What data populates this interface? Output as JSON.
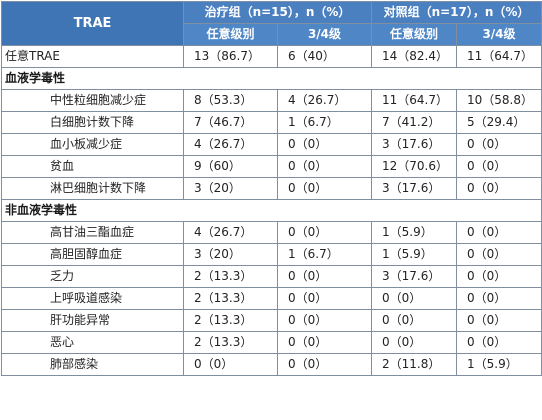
{
  "header": {
    "trae": "TRAE",
    "treatment": "治疗组（n=15），n（%）",
    "control": "对照组（n=17），n（%）",
    "any_grade": "任意级别",
    "grade34": "3/4级"
  },
  "overall": {
    "name": "任意TRAE",
    "t_any": "13（86.7）",
    "t_34": "6（40）",
    "c_any": "14（82.4）",
    "c_34": "11（64.7）"
  },
  "hematologic": {
    "title": "血液学毒性",
    "rows": [
      {
        "name": "中性粒细胞减少症",
        "t_any": "8（53.3）",
        "t_34": "4（26.7）",
        "c_any": "11（64.7）",
        "c_34": "10（58.8）"
      },
      {
        "name": "白细胞计数下降",
        "t_any": "7（46.7）",
        "t_34": "1（6.7）",
        "c_any": "7（41.2）",
        "c_34": "5（29.4）"
      },
      {
        "name": "血小板减少症",
        "t_any": "4（26.7）",
        "t_34": "0（0）",
        "c_any": "3（17.6）",
        "c_34": "0（0）"
      },
      {
        "name": "贫血",
        "t_any": "9（60）",
        "t_34": "0（0）",
        "c_any": "12（70.6）",
        "c_34": "0（0）"
      },
      {
        "name": "淋巴细胞计数下降",
        "t_any": "3（20）",
        "t_34": "0（0）",
        "c_any": "3（17.6）",
        "c_34": "0（0）"
      }
    ]
  },
  "nonhematologic": {
    "title": "非血液学毒性",
    "rows": [
      {
        "name": "高甘油三酯血症",
        "t_any": "4（26.7）",
        "t_34": "0（0）",
        "c_any": "1（5.9）",
        "c_34": "0（0）"
      },
      {
        "name": "高胆固醇血症",
        "t_any": "3（20）",
        "t_34": "1（6.7）",
        "c_any": "1（5.9）",
        "c_34": "0（0）"
      },
      {
        "name": "乏力",
        "t_any": "2（13.3）",
        "t_34": "0（0）",
        "c_any": "3（17.6）",
        "c_34": "0（0）"
      },
      {
        "name": "上呼吸道感染",
        "t_any": "2（13.3）",
        "t_34": "0（0）",
        "c_any": "0（0）",
        "c_34": "0（0）"
      },
      {
        "name": "肝功能异常",
        "t_any": "2（13.3）",
        "t_34": "0（0）",
        "c_any": "0（0）",
        "c_34": "0（0）"
      },
      {
        "name": "恶心",
        "t_any": "2（13.3）",
        "t_34": "0（0）",
        "c_any": "0（0）",
        "c_34": "0（0）"
      },
      {
        "name": "肺部感染",
        "t_any": "0（0）",
        "t_34": "0（0）",
        "c_any": "2（11.8）",
        "c_34": "1（5.9）"
      }
    ]
  }
}
